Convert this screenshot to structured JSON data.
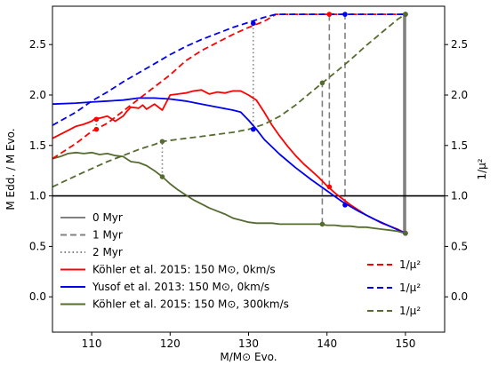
{
  "chart_data": {
    "type": "line",
    "xlabel": "M/M⊙ Evo.",
    "ylabel": "M Edd. / M Evo.",
    "ylabel_right": "1/μ²",
    "xlim": [
      105,
      155
    ],
    "ylim": [
      -0.35,
      2.88
    ],
    "xticks": [
      110,
      120,
      130,
      140,
      150
    ],
    "yticks": [
      0.0,
      0.5,
      1.0,
      1.5,
      2.0,
      2.5
    ],
    "grid": false,
    "hline": 1.0,
    "series": [
      {
        "name": "Köhler et al. 2015: 150 M⊙, 0km/s",
        "style": "solid",
        "color": "#ff0000",
        "x": [
          105,
          106,
          107,
          108,
          109,
          110,
          110.5,
          111,
          112,
          113,
          114,
          114.5,
          115,
          116,
          116.5,
          117,
          118,
          119,
          120,
          121,
          122,
          123,
          124,
          125,
          126,
          127,
          128,
          129,
          130,
          131,
          132,
          133,
          134,
          135,
          136,
          137,
          138,
          139,
          140,
          141,
          142,
          143,
          144,
          145,
          146,
          147,
          148,
          149,
          150
        ],
        "y": [
          1.57,
          1.61,
          1.65,
          1.69,
          1.71,
          1.74,
          1.77,
          1.77,
          1.79,
          1.74,
          1.79,
          1.84,
          1.88,
          1.87,
          1.9,
          1.86,
          1.91,
          1.85,
          2.0,
          2.01,
          2.02,
          2.04,
          2.05,
          2.01,
          2.03,
          2.02,
          2.04,
          2.04,
          2.0,
          1.95,
          1.83,
          1.7,
          1.59,
          1.49,
          1.4,
          1.32,
          1.25,
          1.18,
          1.1,
          1.03,
          0.97,
          0.91,
          0.86,
          0.81,
          0.77,
          0.73,
          0.7,
          0.67,
          0.63
        ]
      },
      {
        "name": "Yusof et al. 2013: 150 M⊙, 0km/s",
        "style": "solid",
        "color": "#0000ee",
        "x": [
          105,
          108,
          110,
          112,
          114,
          116,
          118,
          120,
          122,
          124,
          126,
          128,
          129,
          130,
          131,
          132,
          134,
          136,
          138,
          140,
          142,
          144,
          146,
          148,
          150
        ],
        "y": [
          1.91,
          1.92,
          1.93,
          1.94,
          1.95,
          1.97,
          1.97,
          1.96,
          1.94,
          1.91,
          1.88,
          1.85,
          1.83,
          1.75,
          1.66,
          1.56,
          1.41,
          1.28,
          1.16,
          1.05,
          0.94,
          0.85,
          0.77,
          0.7,
          0.63
        ]
      },
      {
        "name": "Köhler et al. 2015: 150 M⊙, 300km/s",
        "style": "solid",
        "color": "#556b2f",
        "x": [
          105,
          106,
          107,
          108,
          109,
          110,
          111,
          112,
          113,
          114,
          115,
          116,
          117,
          118,
          119,
          120,
          121,
          122,
          123,
          124,
          125,
          126,
          127,
          128,
          129,
          130,
          131,
          132,
          133,
          134,
          135,
          136,
          137,
          138,
          139,
          140,
          141,
          142,
          143,
          144,
          145,
          146,
          147,
          148,
          149,
          150
        ],
        "y": [
          1.37,
          1.39,
          1.42,
          1.43,
          1.42,
          1.43,
          1.41,
          1.42,
          1.4,
          1.39,
          1.34,
          1.33,
          1.3,
          1.25,
          1.19,
          1.12,
          1.06,
          1.01,
          0.96,
          0.92,
          0.88,
          0.85,
          0.82,
          0.78,
          0.76,
          0.74,
          0.73,
          0.73,
          0.73,
          0.72,
          0.72,
          0.72,
          0.72,
          0.72,
          0.72,
          0.71,
          0.71,
          0.7,
          0.7,
          0.69,
          0.69,
          0.68,
          0.67,
          0.66,
          0.65,
          0.63
        ]
      },
      {
        "name": "1/μ²",
        "style": "dashed",
        "color": "#ff0000",
        "x": [
          105,
          108,
          110,
          112,
          114,
          116,
          118,
          120,
          122,
          124,
          126,
          128,
          130,
          132,
          133.5,
          135,
          140,
          150
        ],
        "y": [
          1.37,
          1.52,
          1.64,
          1.72,
          1.84,
          1.96,
          2.08,
          2.2,
          2.34,
          2.44,
          2.52,
          2.6,
          2.67,
          2.73,
          2.8,
          2.8,
          2.8,
          2.8
        ]
      },
      {
        "name": "1/μ²",
        "style": "dashed",
        "color": "#0000ee",
        "x": [
          105,
          108,
          110,
          112,
          114,
          116,
          118,
          120,
          122,
          124,
          126,
          128,
          130,
          132,
          133.5,
          135,
          142,
          150
        ],
        "y": [
          1.7,
          1.83,
          1.94,
          2.03,
          2.13,
          2.22,
          2.31,
          2.4,
          2.48,
          2.55,
          2.61,
          2.67,
          2.72,
          2.77,
          2.8,
          2.8,
          2.8,
          2.8
        ]
      },
      {
        "name": "1/μ²",
        "style": "dashed",
        "color": "#556b2f",
        "x": [
          105,
          108,
          110,
          112,
          114,
          116,
          118,
          119,
          120,
          122,
          124,
          126,
          128,
          130,
          132,
          134,
          136,
          138,
          139.4,
          141,
          143,
          145,
          147,
          149,
          150
        ],
        "y": [
          1.09,
          1.2,
          1.27,
          1.34,
          1.4,
          1.46,
          1.51,
          1.54,
          1.55,
          1.57,
          1.59,
          1.61,
          1.63,
          1.66,
          1.71,
          1.79,
          1.9,
          2.03,
          2.12,
          2.22,
          2.35,
          2.49,
          2.62,
          2.75,
          2.8
        ]
      }
    ],
    "markers": [
      {
        "series": 0,
        "x": 110.6,
        "y": 1.76
      },
      {
        "series": 0,
        "x": 140.3,
        "y": 1.09
      },
      {
        "series": 1,
        "x": 130.6,
        "y": 1.66
      },
      {
        "series": 1,
        "x": 142.3,
        "y": 0.91
      },
      {
        "series": 2,
        "x": 119.0,
        "y": 1.19
      },
      {
        "series": 2,
        "x": 139.4,
        "y": 0.72
      },
      {
        "series": 3,
        "x": 110.6,
        "y": 1.66
      },
      {
        "series": 3,
        "x": 140.3,
        "y": 2.8
      },
      {
        "series": 4,
        "x": 130.6,
        "y": 2.71
      },
      {
        "series": 4,
        "x": 142.3,
        "y": 2.8
      },
      {
        "series": 5,
        "x": 119.0,
        "y": 1.54
      },
      {
        "series": 5,
        "x": 139.4,
        "y": 2.12
      },
      {
        "series": 0,
        "x": 150,
        "y": 0.63
      },
      {
        "series": 1,
        "x": 150,
        "y": 0.63
      },
      {
        "series": 2,
        "x": 150,
        "y": 0.63
      },
      {
        "series": 3,
        "x": 150,
        "y": 2.8
      },
      {
        "series": 4,
        "x": 150,
        "y": 2.8
      },
      {
        "series": 5,
        "x": 150,
        "y": 2.8
      }
    ],
    "connectors": [
      {
        "style": "dotted",
        "x": 110.6,
        "y1": 1.66,
        "y2": 1.76
      },
      {
        "style": "dotted",
        "x": 119.0,
        "y1": 1.19,
        "y2": 1.54
      },
      {
        "style": "dotted",
        "x": 130.6,
        "y1": 1.66,
        "y2": 2.71
      },
      {
        "style": "dashed",
        "x": 139.4,
        "y1": 0.72,
        "y2": 2.12
      },
      {
        "style": "dashed",
        "x": 140.3,
        "y1": 1.09,
        "y2": 2.8
      },
      {
        "style": "dashed",
        "x": 142.3,
        "y1": 0.91,
        "y2": 2.8
      },
      {
        "style": "solid",
        "x": 149.8,
        "y1": 0.63,
        "y2": 2.8
      },
      {
        "style": "solid",
        "x": 150.0,
        "y1": 0.63,
        "y2": 2.8
      }
    ],
    "legend_left": [
      {
        "label": "0 Myr",
        "style": "solid",
        "color": "#808080"
      },
      {
        "label": "1 Myr",
        "style": "dashed",
        "color": "#808080"
      },
      {
        "label": "2 Myr",
        "style": "dotted",
        "color": "#808080"
      },
      {
        "label": "Köhler et al. 2015: 150 M⊙, 0km/s",
        "style": "solid",
        "color": "#ff0000"
      },
      {
        "label": "Yusof et al. 2013: 150 M⊙, 0km/s",
        "style": "solid",
        "color": "#0000ee"
      },
      {
        "label": "Köhler et al. 2015: 150 M⊙, 300km/s",
        "style": "solid",
        "color": "#556b2f"
      }
    ],
    "legend_right": [
      {
        "label": "1/μ²",
        "style": "dashed",
        "color": "#ff0000"
      },
      {
        "label": "1/μ²",
        "style": "dashed",
        "color": "#0000ee"
      },
      {
        "label": "1/μ²",
        "style": "dashed",
        "color": "#556b2f"
      }
    ]
  }
}
